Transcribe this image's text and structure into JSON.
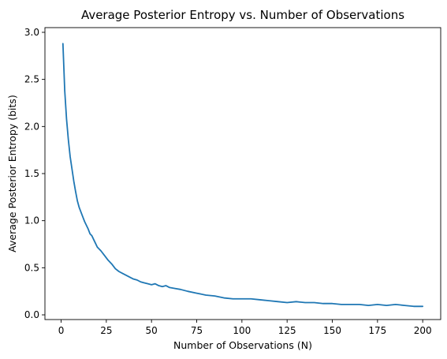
{
  "chart_data": {
    "type": "line",
    "title": "Average Posterior Entropy vs. Number of Observations",
    "xlabel": "Number of Observations (N)",
    "ylabel": "Average Posterior Entropy (bits)",
    "xlim": [
      -8.95,
      209.95
    ],
    "ylim": [
      -0.05,
      3.05
    ],
    "xticks": [
      0,
      25,
      50,
      75,
      100,
      125,
      150,
      175,
      200
    ],
    "xtick_labels": [
      "0",
      "25",
      "50",
      "75",
      "100",
      "125",
      "150",
      "175",
      "200"
    ],
    "yticks": [
      0.0,
      0.5,
      1.0,
      1.5,
      2.0,
      2.5,
      3.0
    ],
    "ytick_labels": [
      "0.0",
      "0.5",
      "1.0",
      "1.5",
      "2.0",
      "2.5",
      "3.0"
    ],
    "grid": false,
    "line_color": "#1f77b4",
    "series": [
      {
        "x": [
          1,
          2,
          3,
          4,
          5,
          6,
          7,
          8,
          9,
          10,
          11,
          12,
          13,
          14,
          15,
          16,
          17,
          18,
          19,
          20,
          22,
          24,
          26,
          28,
          30,
          32,
          34,
          36,
          38,
          40,
          42,
          44,
          46,
          48,
          50,
          52,
          54,
          56,
          58,
          60,
          63,
          66,
          70,
          75,
          80,
          85,
          90,
          95,
          100,
          105,
          110,
          115,
          120,
          125,
          130,
          135,
          140,
          145,
          150,
          155,
          160,
          165,
          170,
          175,
          180,
          185,
          190,
          195,
          200
        ],
        "values": [
          2.88,
          2.38,
          2.08,
          1.86,
          1.68,
          1.55,
          1.42,
          1.31,
          1.21,
          1.14,
          1.09,
          1.04,
          0.99,
          0.95,
          0.91,
          0.86,
          0.84,
          0.8,
          0.76,
          0.72,
          0.68,
          0.63,
          0.58,
          0.54,
          0.49,
          0.46,
          0.44,
          0.42,
          0.4,
          0.38,
          0.37,
          0.35,
          0.34,
          0.33,
          0.32,
          0.33,
          0.31,
          0.3,
          0.31,
          0.29,
          0.28,
          0.27,
          0.25,
          0.23,
          0.21,
          0.2,
          0.18,
          0.17,
          0.17,
          0.17,
          0.16,
          0.15,
          0.14,
          0.13,
          0.14,
          0.13,
          0.13,
          0.12,
          0.12,
          0.11,
          0.11,
          0.11,
          0.1,
          0.11,
          0.1,
          0.11,
          0.1,
          0.09,
          0.09
        ]
      }
    ]
  }
}
